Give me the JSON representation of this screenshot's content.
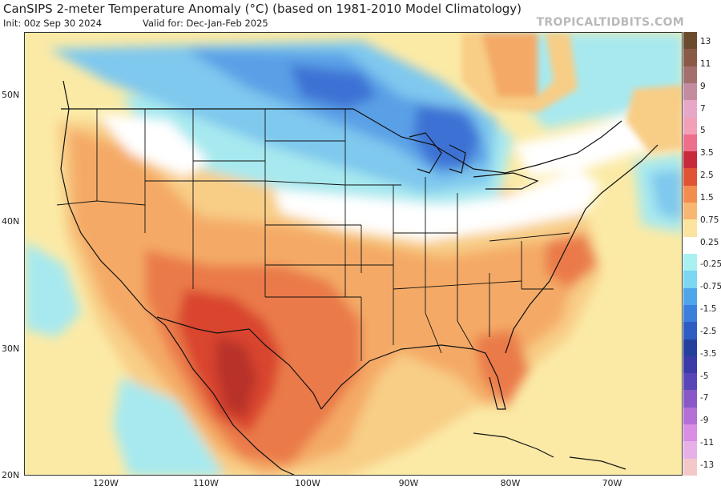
{
  "header": {
    "title": "CanSIPS 2-meter Temperature Anomaly (°C) (based on 1981-2010 Model Climatology)",
    "init": "Init: 00z Sep 30 2024",
    "valid": "Valid for: Dec-Jan-Feb 2025",
    "credit": "TROPICALTIDBITS.COM"
  },
  "map": {
    "lat_labels": [
      "50N",
      "40N",
      "30N",
      "20N"
    ],
    "lon_labels": [
      "120W",
      "110W",
      "100W",
      "90W",
      "80W",
      "70W"
    ],
    "colors": {
      "ocean_neutral": "#fbeaa6",
      "warm_light": "#f8cd86",
      "warm_mid": "#f4aa66",
      "warm_strong": "#ea7a4a",
      "warm_hot": "#d9452f",
      "warm_extreme": "#b8302c",
      "cool_light": "#a7e9ef",
      "cool_mid": "#7fc8ee",
      "cool_strong": "#5aa0e6",
      "cool_deep": "#3d72d4",
      "neutral": "#ffffff",
      "border": "#111111"
    }
  },
  "colorbar": {
    "labels": [
      "13",
      "11",
      "9",
      "7",
      "5",
      "3.5",
      "2.5",
      "1.5",
      "0.75",
      "0.25",
      "-0.25",
      "-0.75",
      "-1.5",
      "-2.5",
      "-3.5",
      "-5",
      "-7",
      "-9",
      "-11",
      "-13"
    ],
    "colors": [
      "#6b4a2e",
      "#8a5a48",
      "#a3716d",
      "#c48ca0",
      "#e7a8c8",
      "#f2a0b8",
      "#ee6f8a",
      "#c72a3a",
      "#e05433",
      "#f28c4f",
      "#f7b773",
      "#fbe3a0",
      "#ffffff",
      "#a9f0f0",
      "#7dd6f2",
      "#4fa5ea",
      "#3b7fdc",
      "#2d5cc3",
      "#25409c",
      "#3b3aa8",
      "#5a45b8",
      "#8858c8",
      "#b56fd6",
      "#d98de3",
      "#e7b1e8",
      "#f3c8c8"
    ]
  }
}
